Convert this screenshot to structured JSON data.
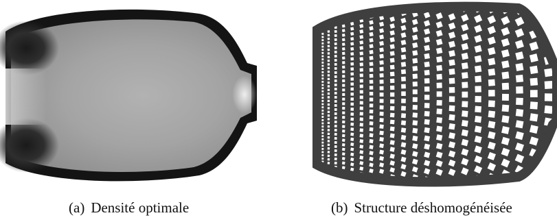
{
  "figure": {
    "subfigures": [
      {
        "tag": "(a)",
        "caption": "Densité optimale",
        "image": "grayscale optimal density map of a bulb-shaped domain, dark outer boundary"
      },
      {
        "tag": "(b)",
        "caption": "Structure déshomogénéisée",
        "image": "dehomogenized lattice structure, dark gray grid of square cells in a bulb-shaped domain"
      }
    ],
    "colors": {
      "background": "#ffffff",
      "density_dark": "#141414",
      "density_interior": "#a8a8a8",
      "structure": "#3f3f3f"
    }
  }
}
